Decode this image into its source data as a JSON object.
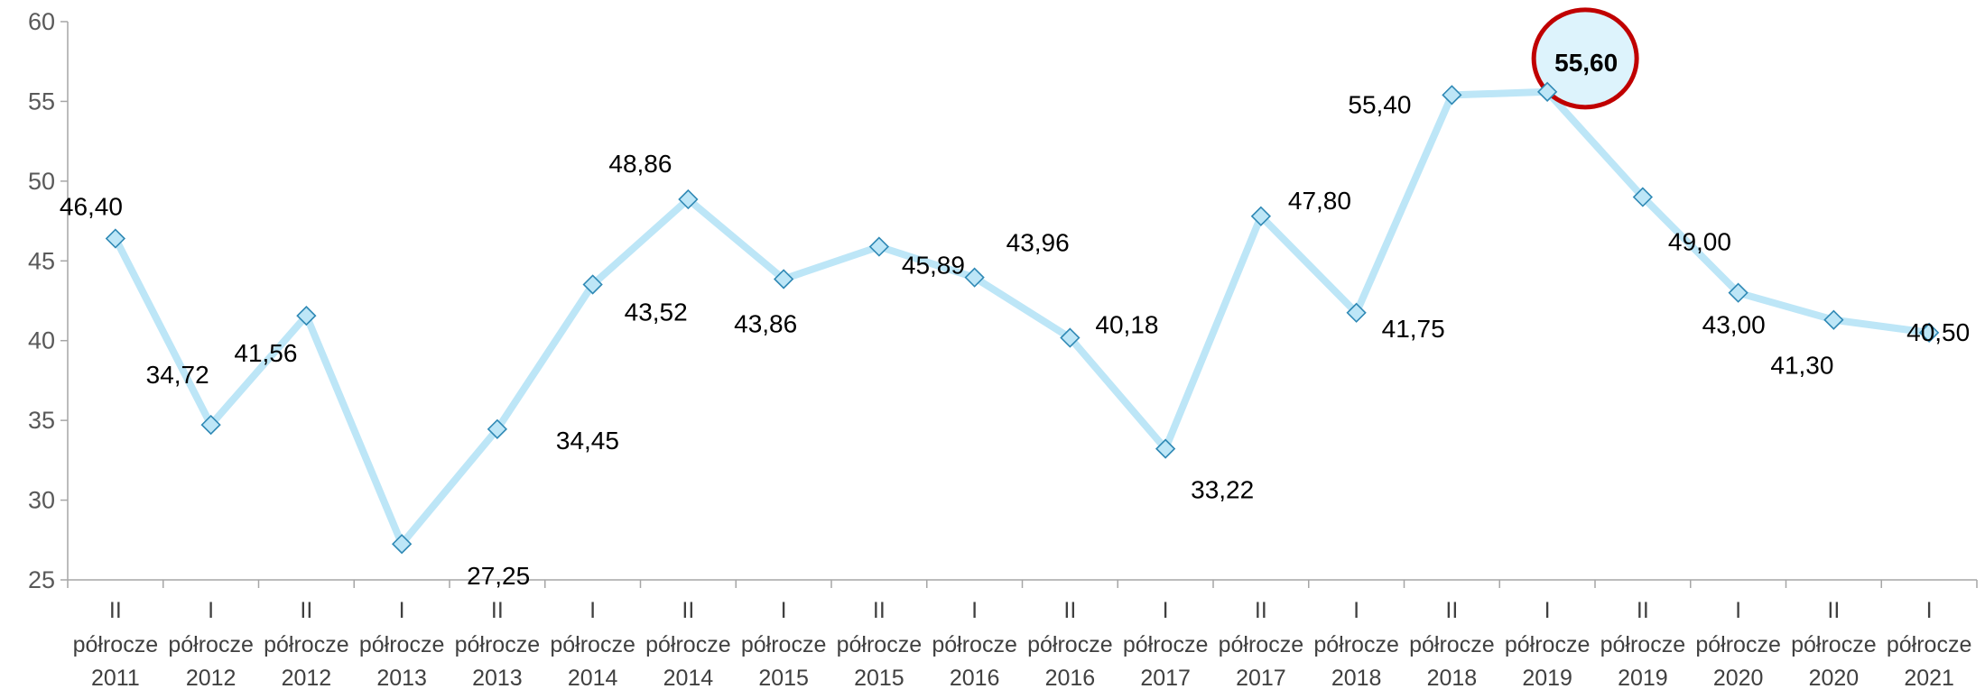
{
  "chart_data": {
    "type": "line",
    "ylim": [
      25,
      60
    ],
    "yticks": [
      "25",
      "30",
      "35",
      "40",
      "45",
      "50",
      "55",
      "60"
    ],
    "grid": false,
    "categories": [
      {
        "period": "II",
        "word": "półrocze",
        "year": "2011"
      },
      {
        "period": "I",
        "word": "półrocze",
        "year": "2012"
      },
      {
        "period": "II",
        "word": "półrocze",
        "year": "2012"
      },
      {
        "period": "I",
        "word": "półrocze",
        "year": "2013"
      },
      {
        "period": "II",
        "word": "półrocze",
        "year": "2013"
      },
      {
        "period": "I",
        "word": "półrocze",
        "year": "2014"
      },
      {
        "period": "II",
        "word": "półrocze",
        "year": "2014"
      },
      {
        "period": "I",
        "word": "półrocze",
        "year": "2015"
      },
      {
        "period": "II",
        "word": "półrocze",
        "year": "2015"
      },
      {
        "period": "I",
        "word": "półrocze",
        "year": "2016"
      },
      {
        "period": "II",
        "word": "półrocze",
        "year": "2016"
      },
      {
        "period": "I",
        "word": "półrocze",
        "year": "2017"
      },
      {
        "period": "II",
        "word": "półrocze",
        "year": "2017"
      },
      {
        "period": "I",
        "word": "półrocze",
        "year": "2018"
      },
      {
        "period": "II",
        "word": "półrocze",
        "year": "2018"
      },
      {
        "period": "I",
        "word": "półrocze",
        "year": "2019"
      },
      {
        "period": "II",
        "word": "półrocze",
        "year": "2019"
      },
      {
        "period": "I",
        "word": "półrocze",
        "year": "2020"
      },
      {
        "period": "II",
        "word": "półrocze",
        "year": "2020"
      },
      {
        "period": "I",
        "word": "półrocze",
        "year": "2021"
      }
    ],
    "values": [
      46.4,
      34.72,
      41.56,
      27.25,
      34.45,
      43.52,
      48.86,
      43.86,
      45.89,
      43.96,
      40.18,
      33.22,
      47.8,
      41.75,
      55.4,
      55.6,
      49.0,
      43.0,
      41.3,
      40.5
    ],
    "data_labels": [
      "46,40",
      "34,72",
      "41,56",
      "27,25",
      "34,45",
      "43,52",
      "48,86",
      "43,86",
      "45,89",
      "43,96",
      "40,18",
      "33,22",
      "47,80",
      "41,75",
      "55,40",
      "55,60",
      "49,00",
      "43,00",
      "41,30",
      "40,50"
    ],
    "highlight_index": 15,
    "colors": {
      "line": "#BDE6F7",
      "marker_fill": "#BDE6F7",
      "marker_stroke": "#2F89B5",
      "axis": "#A6A6A6",
      "highlight_ring": "#C00000",
      "highlight_fill": "#DDF3FC"
    }
  }
}
